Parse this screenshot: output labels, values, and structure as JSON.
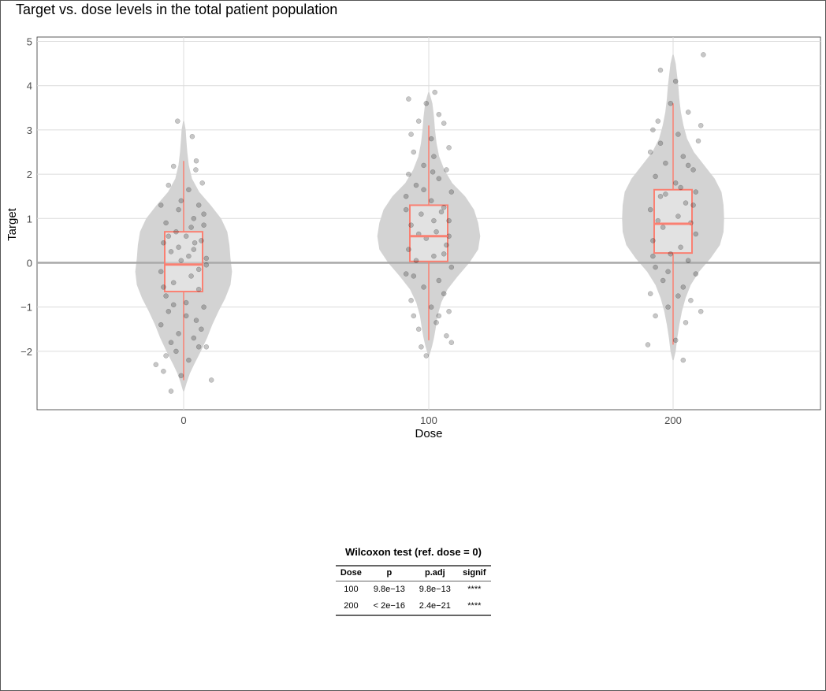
{
  "title": "Target vs. dose levels in the total patient population",
  "chart_data": {
    "type": "violin",
    "xlabel": "Dose",
    "ylabel": "Target",
    "categories": [
      "0",
      "100",
      "200"
    ],
    "y_ticks": [
      -2,
      -1,
      0,
      1,
      2,
      3,
      4,
      5
    ],
    "ylim": [
      -3.35,
      5.1
    ],
    "reference_line_y": 0,
    "grid": true,
    "colors": {
      "violin": "#d3d3d3",
      "box": "#fa8072",
      "points": "#000000",
      "grid": "#dcdcdc",
      "ref_line": "#a9a9a9"
    },
    "groups": [
      {
        "dose": "0",
        "box": {
          "q1": -0.65,
          "median": -0.04,
          "q3": 0.7,
          "whisker_low": -2.65,
          "whisker_high": 2.3
        },
        "range": [
          -2.9,
          3.2
        ],
        "violin": [
          [
            -2.9,
            0.01
          ],
          [
            -2.7,
            0.06
          ],
          [
            -2.5,
            0.12
          ],
          [
            -2.3,
            0.2
          ],
          [
            -2.0,
            0.33
          ],
          [
            -1.7,
            0.45
          ],
          [
            -1.4,
            0.55
          ],
          [
            -1.1,
            0.67
          ],
          [
            -0.8,
            0.8
          ],
          [
            -0.5,
            0.9
          ],
          [
            -0.2,
            0.93
          ],
          [
            0.1,
            0.9
          ],
          [
            0.4,
            0.88
          ],
          [
            0.7,
            0.84
          ],
          [
            1.0,
            0.72
          ],
          [
            1.3,
            0.52
          ],
          [
            1.6,
            0.3
          ],
          [
            1.9,
            0.16
          ],
          [
            2.2,
            0.1
          ],
          [
            2.5,
            0.07
          ],
          [
            2.8,
            0.05
          ],
          [
            3.0,
            0.04
          ],
          [
            3.2,
            0.01
          ]
        ],
        "points": [
          [
            -0.12,
            3.2
          ],
          [
            0.17,
            2.85
          ],
          [
            0.25,
            2.3
          ],
          [
            -0.2,
            2.18
          ],
          [
            0.24,
            2.1
          ],
          [
            0.37,
            1.8
          ],
          [
            -0.3,
            1.75
          ],
          [
            0.1,
            1.65
          ],
          [
            -0.45,
            1.3
          ],
          [
            0.3,
            1.3
          ],
          [
            -0.1,
            1.2
          ],
          [
            0.2,
            1.0
          ],
          [
            -0.35,
            0.9
          ],
          [
            0.4,
            0.85
          ],
          [
            -0.15,
            0.7
          ],
          [
            0.05,
            0.6
          ],
          [
            0.35,
            0.5
          ],
          [
            -0.4,
            0.45
          ],
          [
            0.2,
            0.3
          ],
          [
            -0.25,
            0.25
          ],
          [
            0.1,
            0.15
          ],
          [
            -0.05,
            0.05
          ],
          [
            0.45,
            -0.05
          ],
          [
            -0.45,
            -0.2
          ],
          [
            0.15,
            -0.3
          ],
          [
            -0.2,
            -0.45
          ],
          [
            0.3,
            -0.6
          ],
          [
            -0.35,
            -0.75
          ],
          [
            0.05,
            -0.9
          ],
          [
            0.4,
            -1.0
          ],
          [
            -0.3,
            -1.1
          ],
          [
            0.25,
            -1.3
          ],
          [
            -0.45,
            -1.4
          ],
          [
            0.35,
            -1.5
          ],
          [
            -0.1,
            -1.6
          ],
          [
            0.2,
            -1.7
          ],
          [
            -0.25,
            -1.8
          ],
          [
            0.3,
            -1.9
          ],
          [
            -0.15,
            -2.0
          ],
          [
            0.45,
            -1.9
          ],
          [
            -0.35,
            -2.1
          ],
          [
            -0.55,
            -2.3
          ],
          [
            -0.4,
            -2.45
          ],
          [
            0.1,
            -2.2
          ],
          [
            0.55,
            -2.65
          ],
          [
            -0.25,
            -2.9
          ],
          [
            -0.05,
            -2.55
          ],
          [
            0.15,
            0.8
          ],
          [
            -0.05,
            1.4
          ],
          [
            0.3,
            -0.15
          ],
          [
            -0.3,
            0.6
          ],
          [
            0.4,
            1.1
          ],
          [
            -0.4,
            -0.55
          ],
          [
            0.05,
            -1.2
          ],
          [
            0.22,
            0.45
          ],
          [
            -0.2,
            -0.95
          ],
          [
            0.45,
            0.1
          ],
          [
            -0.1,
            0.35
          ]
        ]
      },
      {
        "dose": "100",
        "box": {
          "q1": 0.03,
          "median": 0.6,
          "q3": 1.3,
          "whisker_low": -1.75,
          "whisker_high": 3.1
        },
        "range": [
          -2.1,
          3.85
        ],
        "violin": [
          [
            -2.1,
            0.01
          ],
          [
            -1.9,
            0.06
          ],
          [
            -1.7,
            0.1
          ],
          [
            -1.5,
            0.13
          ],
          [
            -1.2,
            0.17
          ],
          [
            -0.9,
            0.24
          ],
          [
            -0.6,
            0.36
          ],
          [
            -0.3,
            0.56
          ],
          [
            0.0,
            0.78
          ],
          [
            0.3,
            0.95
          ],
          [
            0.6,
            0.99
          ],
          [
            0.9,
            0.95
          ],
          [
            1.2,
            0.87
          ],
          [
            1.5,
            0.7
          ],
          [
            1.8,
            0.45
          ],
          [
            2.1,
            0.3
          ],
          [
            2.4,
            0.2
          ],
          [
            2.7,
            0.15
          ],
          [
            3.0,
            0.12
          ],
          [
            3.3,
            0.1
          ],
          [
            3.6,
            0.07
          ],
          [
            3.85,
            0.01
          ]
        ],
        "points": [
          [
            -0.4,
            3.7
          ],
          [
            0.12,
            3.85
          ],
          [
            -0.05,
            3.6
          ],
          [
            0.2,
            3.35
          ],
          [
            -0.2,
            3.2
          ],
          [
            0.3,
            3.15
          ],
          [
            -0.35,
            2.9
          ],
          [
            0.05,
            2.8
          ],
          [
            0.4,
            2.6
          ],
          [
            -0.3,
            2.5
          ],
          [
            0.1,
            2.4
          ],
          [
            -0.1,
            2.2
          ],
          [
            0.35,
            2.1
          ],
          [
            -0.4,
            2.0
          ],
          [
            0.2,
            1.9
          ],
          [
            -0.25,
            1.75
          ],
          [
            0.45,
            1.6
          ],
          [
            -0.45,
            1.5
          ],
          [
            0.05,
            1.4
          ],
          [
            0.3,
            1.25
          ],
          [
            -0.15,
            1.1
          ],
          [
            0.4,
            0.95
          ],
          [
            -0.35,
            0.85
          ],
          [
            0.15,
            0.7
          ],
          [
            -0.05,
            0.55
          ],
          [
            0.35,
            0.4
          ],
          [
            -0.4,
            0.3
          ],
          [
            0.1,
            0.15
          ],
          [
            -0.25,
            0.05
          ],
          [
            0.45,
            -0.1
          ],
          [
            -0.45,
            -0.25
          ],
          [
            0.2,
            -0.4
          ],
          [
            -0.1,
            -0.55
          ],
          [
            0.3,
            -0.7
          ],
          [
            -0.35,
            -0.85
          ],
          [
            0.05,
            -1.0
          ],
          [
            0.4,
            -1.1
          ],
          [
            -0.3,
            -1.2
          ],
          [
            0.15,
            -1.35
          ],
          [
            -0.2,
            -1.5
          ],
          [
            0.35,
            -1.65
          ],
          [
            0.45,
            -1.8
          ],
          [
            -0.15,
            -1.9
          ],
          [
            -0.05,
            -2.1
          ],
          [
            0.25,
            1.15
          ],
          [
            -0.2,
            0.65
          ],
          [
            0.08,
            2.05
          ],
          [
            -0.3,
            -0.3
          ],
          [
            0.4,
            0.6
          ],
          [
            -0.45,
            1.2
          ],
          [
            0.2,
            -1.2
          ],
          [
            0.1,
            0.95
          ],
          [
            -0.1,
            1.65
          ],
          [
            0.3,
            0.2
          ]
        ]
      },
      {
        "dose": "200",
        "box": {
          "q1": 0.22,
          "median": 0.88,
          "q3": 1.65,
          "whisker_low": -1.85,
          "whisker_high": 3.6
        },
        "range": [
          -2.2,
          4.7
        ],
        "violin": [
          [
            -2.2,
            0.01
          ],
          [
            -2.0,
            0.05
          ],
          [
            -1.7,
            0.08
          ],
          [
            -1.4,
            0.12
          ],
          [
            -1.1,
            0.17
          ],
          [
            -0.8,
            0.24
          ],
          [
            -0.5,
            0.34
          ],
          [
            -0.2,
            0.5
          ],
          [
            0.1,
            0.72
          ],
          [
            0.4,
            0.9
          ],
          [
            0.7,
            0.97
          ],
          [
            1.0,
            0.98
          ],
          [
            1.3,
            0.97
          ],
          [
            1.6,
            0.93
          ],
          [
            1.9,
            0.8
          ],
          [
            2.2,
            0.6
          ],
          [
            2.5,
            0.4
          ],
          [
            2.8,
            0.27
          ],
          [
            3.1,
            0.2
          ],
          [
            3.4,
            0.15
          ],
          [
            3.7,
            0.12
          ],
          [
            4.0,
            0.1
          ],
          [
            4.3,
            0.07
          ],
          [
            4.5,
            0.05
          ],
          [
            4.7,
            0.01
          ]
        ],
        "points": [
          [
            0.6,
            4.7
          ],
          [
            -0.25,
            4.35
          ],
          [
            0.05,
            4.1
          ],
          [
            -0.05,
            3.6
          ],
          [
            0.3,
            3.4
          ],
          [
            -0.3,
            3.2
          ],
          [
            0.55,
            3.1
          ],
          [
            -0.4,
            3.0
          ],
          [
            0.1,
            2.9
          ],
          [
            0.5,
            2.75
          ],
          [
            -0.45,
            2.5
          ],
          [
            0.2,
            2.4
          ],
          [
            -0.15,
            2.25
          ],
          [
            0.4,
            2.1
          ],
          [
            -0.35,
            1.95
          ],
          [
            0.05,
            1.8
          ],
          [
            0.45,
            1.6
          ],
          [
            -0.25,
            1.5
          ],
          [
            0.25,
            1.35
          ],
          [
            -0.45,
            1.2
          ],
          [
            0.1,
            1.05
          ],
          [
            0.35,
            0.9
          ],
          [
            -0.2,
            0.8
          ],
          [
            0.45,
            0.65
          ],
          [
            -0.4,
            0.5
          ],
          [
            0.15,
            0.35
          ],
          [
            -0.05,
            0.2
          ],
          [
            0.3,
            0.05
          ],
          [
            -0.35,
            -0.1
          ],
          [
            0.45,
            -0.25
          ],
          [
            -0.2,
            -0.4
          ],
          [
            0.2,
            -0.55
          ],
          [
            -0.45,
            -0.7
          ],
          [
            0.35,
            -0.85
          ],
          [
            -0.1,
            -1.0
          ],
          [
            0.55,
            -1.1
          ],
          [
            -0.35,
            -1.2
          ],
          [
            0.25,
            -1.35
          ],
          [
            -0.5,
            -1.85
          ],
          [
            0.05,
            -1.75
          ],
          [
            0.2,
            -2.2
          ],
          [
            -0.25,
            2.7
          ],
          [
            0.15,
            1.7
          ],
          [
            -0.3,
            0.95
          ],
          [
            0.4,
            1.3
          ],
          [
            -0.1,
            -0.2
          ],
          [
            0.3,
            2.2
          ],
          [
            -0.4,
            0.15
          ],
          [
            0.1,
            -0.75
          ],
          [
            -0.15,
            1.55
          ]
        ]
      }
    ]
  },
  "stats_table": {
    "title": "Wilcoxon test (ref. dose = 0)",
    "columns": [
      "Dose",
      "p",
      "p.adj",
      "signif"
    ],
    "rows": [
      [
        "100",
        "9.8e−13",
        "9.8e−13",
        "****"
      ],
      [
        "200",
        "< 2e−16",
        "2.4e−21",
        "****"
      ]
    ]
  }
}
